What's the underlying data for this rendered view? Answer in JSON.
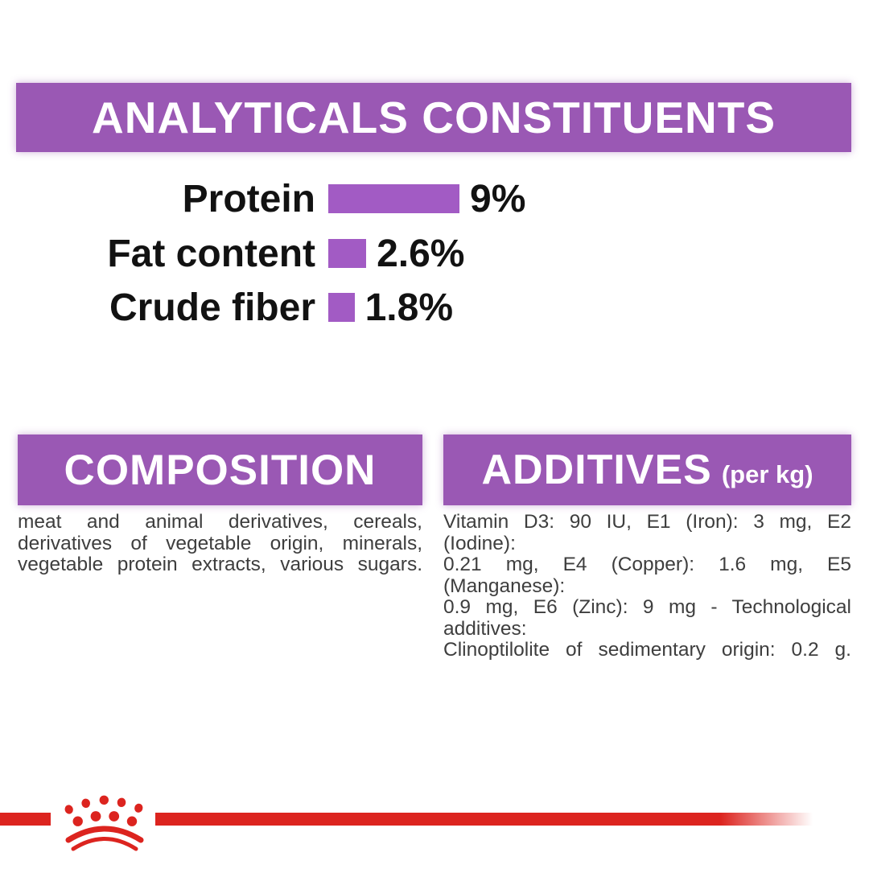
{
  "colors": {
    "banner_purple": "#9a58b4",
    "bar_purple": "#a25bc4",
    "brand_red": "#dc241f",
    "banner_text": "#ffffff",
    "body_text": "#3e3e3e",
    "chart_text": "#121212"
  },
  "chart_data": {
    "type": "bar",
    "orientation": "horizontal",
    "title": "ANALYTICALS CONSTITUENTS",
    "categories": [
      "Protein",
      "Fat content",
      "Crude fiber"
    ],
    "values": [
      9,
      2.6,
      1.8
    ],
    "value_labels": [
      "9%",
      "2.6%",
      "1.8%"
    ],
    "unit": "%",
    "xlim": [
      0,
      9
    ],
    "bar_color": "#a25bc4",
    "grid": false,
    "legend": false
  },
  "composition": {
    "title": "COMPOSITION",
    "body": "meat and animal derivatives, cereals,\nderivatives of vegetable origin, minerals,\nvegetable protein extracts, various sugars."
  },
  "additives": {
    "title": "ADDITIVES",
    "title_suffix": "(per kg)",
    "body": "Vitamin D3: 90 IU, E1 (Iron): 3 mg, E2 (Iodine):\n0.21 mg, E4 (Copper): 1.6 mg, E5 (Manganese):\n0.9 mg, E6 (Zinc): 9 mg - Technological additives:\nClinoptilolite of sedimentary origin: 0.2 g."
  },
  "footer": {
    "logo": "royal-canin-crown"
  }
}
